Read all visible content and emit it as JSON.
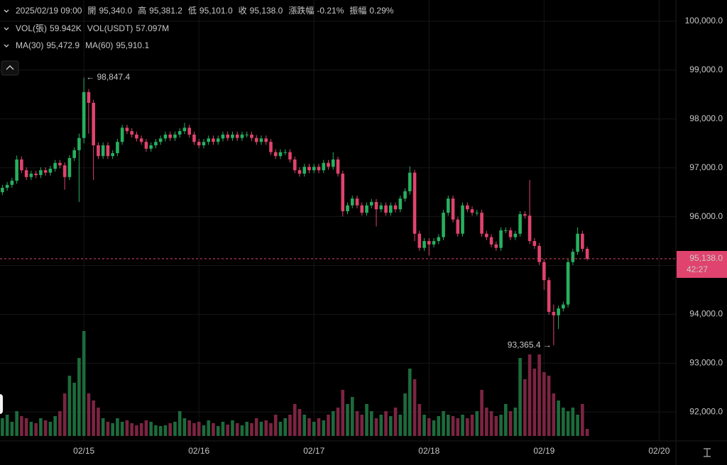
{
  "chart_data": {
    "type": "candlestick",
    "legend_rows": [
      [
        {
          "label": "2025/02/19 09:00"
        },
        {
          "label": "開",
          "value": "95,340.0",
          "color": "#e0436d"
        },
        {
          "label": "高",
          "value": "95,381.2",
          "color": "#e0436d"
        },
        {
          "label": "低",
          "value": "95,101.0",
          "color": "#e0436d"
        },
        {
          "label": "收",
          "value": "95,138.0",
          "color": "#e0436d"
        },
        {
          "label": "漲跌幅",
          "value": "-0.21%",
          "color": "#e0436d"
        },
        {
          "label": "振幅",
          "value": "0.29%",
          "color": "#e0436d"
        }
      ],
      [
        {
          "label": "VOL(張)",
          "value": "59.942K",
          "color": "#f0a040"
        },
        {
          "label": "VOL(USDT)",
          "value": "57.097M",
          "color": "#f0a040"
        }
      ],
      [
        {
          "label": "MA(30)",
          "value": "95,472.9",
          "color": "#f0a040"
        },
        {
          "label": "MA(60)",
          "value": "95,910.1",
          "color": "#e0436d"
        }
      ]
    ],
    "up_color": "#27b05e",
    "down_color": "#e0436d",
    "up_volume_color": "#1d6b3c",
    "down_volume_color": "#7c2442",
    "open": [
      96500,
      96590,
      96650,
      96735,
      97170,
      96950,
      96810,
      96880,
      96850,
      96950,
      96900,
      96980,
      97100,
      97050,
      96810,
      97200,
      97360,
      97610,
      98550,
      98330,
      97460,
      97240,
      97460,
      97240,
      97300,
      97530,
      97820,
      97750,
      97680,
      97600,
      97530,
      97390,
      97460,
      97530,
      97600,
      97680,
      97610,
      97680,
      97750,
      97820,
      97680,
      97530,
      97460,
      97530,
      97600,
      97530,
      97600,
      97680,
      97610,
      97680,
      97610,
      97680,
      97680,
      97610,
      97530,
      97600,
      97530,
      97320,
      97240,
      97320,
      97320,
      97170,
      96950,
      96880,
      97020,
      96950,
      97020,
      96950,
      97100,
      97020,
      97170,
      96880,
      96110,
      96230,
      96370,
      96230,
      96080,
      96230,
      96300,
      96150,
      96230,
      96080,
      96230,
      96150,
      96370,
      96520,
      96900,
      95650,
      95360,
      95500,
      95430,
      95500,
      95580,
      96080,
      96370,
      95940,
      95650,
      96230,
      96150,
      96080,
      96080,
      95650,
      95580,
      95430,
      95360,
      95720,
      95720,
      95580,
      95650,
      96050,
      96020,
      95500,
      95400,
      95070,
      94700,
      94050,
      93980,
      94120,
      94200,
      95070,
      95280,
      95650,
      95340
    ],
    "high": [
      96650,
      96710,
      96795,
      97250,
      97230,
      97010,
      96940,
      96940,
      97010,
      97010,
      97040,
      97160,
      97160,
      97110,
      97260,
      97420,
      97700,
      98847.4,
      98610,
      98390,
      97520,
      97520,
      97520,
      97360,
      97590,
      97880,
      97880,
      97810,
      97740,
      97660,
      97590,
      97520,
      97590,
      97660,
      97740,
      97740,
      97740,
      97810,
      97920,
      97880,
      97740,
      97590,
      97590,
      97660,
      97660,
      97660,
      97740,
      97740,
      97740,
      97740,
      97740,
      97740,
      97740,
      97670,
      97660,
      97660,
      97590,
      97380,
      97380,
      97380,
      97380,
      97230,
      97010,
      97080,
      97080,
      97080,
      97080,
      97160,
      97160,
      97320,
      97230,
      96940,
      96290,
      96430,
      96430,
      96290,
      96290,
      96360,
      96360,
      96290,
      96290,
      96290,
      96290,
      96430,
      96580,
      97030,
      96960,
      95710,
      95560,
      95560,
      95560,
      95640,
      96140,
      96430,
      96430,
      96000,
      96290,
      96290,
      96210,
      96140,
      96140,
      95710,
      95640,
      95490,
      95780,
      95780,
      95780,
      95710,
      96110,
      96110,
      96750,
      95560,
      95460,
      95130,
      94760,
      94200,
      94180,
      94260,
      95130,
      95340,
      95780,
      95710,
      95381.2
    ],
    "low": [
      96440,
      96530,
      96590,
      96675,
      96890,
      96750,
      96750,
      96790,
      96790,
      96840,
      96840,
      96920,
      96990,
      96550,
      96750,
      97140,
      96300,
      97500,
      97700,
      96750,
      97180,
      97180,
      97180,
      97180,
      97240,
      97470,
      97690,
      97620,
      97540,
      97470,
      97330,
      97330,
      97400,
      97470,
      97540,
      97550,
      97550,
      97620,
      97690,
      97620,
      97470,
      97400,
      97400,
      97470,
      97470,
      97470,
      97540,
      97550,
      97550,
      97550,
      97550,
      97620,
      97550,
      97470,
      97470,
      97470,
      97260,
      97180,
      97180,
      97260,
      97110,
      96890,
      96820,
      96820,
      96890,
      96890,
      96890,
      96890,
      96960,
      96960,
      96820,
      96000,
      96050,
      96170,
      96170,
      96020,
      96020,
      96170,
      95800,
      96090,
      96020,
      96020,
      96090,
      96090,
      96310,
      96450,
      95500,
      95300,
      95300,
      95200,
      95370,
      95440,
      95520,
      96020,
      95880,
      95590,
      95590,
      96090,
      96020,
      96020,
      95590,
      95520,
      95370,
      95300,
      95300,
      95660,
      95520,
      95520,
      95590,
      95960,
      95440,
      95340,
      95010,
      94500,
      93990,
      93365.4,
      93700,
      94060,
      94140,
      95010,
      95220,
      95280,
      95101
    ],
    "close": [
      96590,
      96650,
      96735,
      97170,
      96950,
      96810,
      96880,
      96850,
      96950,
      96900,
      96980,
      97100,
      97050,
      96810,
      97200,
      97360,
      97610,
      98550,
      98330,
      97460,
      97240,
      97460,
      97240,
      97300,
      97530,
      97820,
      97750,
      97680,
      97600,
      97530,
      97390,
      97460,
      97530,
      97600,
      97680,
      97610,
      97680,
      97750,
      97820,
      97680,
      97530,
      97460,
      97530,
      97600,
      97530,
      97600,
      97680,
      97610,
      97680,
      97610,
      97680,
      97680,
      97610,
      97530,
      97600,
      97530,
      97320,
      97240,
      97320,
      97320,
      97170,
      96950,
      96880,
      97020,
      96950,
      97020,
      96950,
      97100,
      97020,
      97170,
      96880,
      96110,
      96230,
      96370,
      96230,
      96080,
      96230,
      96300,
      96150,
      96230,
      96080,
      96230,
      96150,
      96370,
      96520,
      96900,
      95650,
      95360,
      95500,
      95430,
      95500,
      95580,
      96080,
      96370,
      95940,
      95650,
      96230,
      96150,
      96080,
      96080,
      95650,
      95580,
      95430,
      95360,
      95720,
      95720,
      95580,
      95650,
      96050,
      96020,
      95500,
      95400,
      95070,
      94700,
      94050,
      93980,
      94120,
      94200,
      95070,
      95280,
      95650,
      95340,
      95138
    ],
    "volume": [
      150000,
      180000,
      120000,
      210000,
      168000,
      150000,
      120000,
      108000,
      150000,
      132000,
      120000,
      168000,
      210000,
      360000,
      510000,
      450000,
      660000,
      888000,
      360000,
      300000,
      240000,
      150000,
      120000,
      108000,
      150000,
      120000,
      132000,
      108000,
      90000,
      108000,
      132000,
      120000,
      90000,
      84000,
      90000,
      108000,
      120000,
      210000,
      150000,
      132000,
      108000,
      120000,
      90000,
      132000,
      108000,
      84000,
      120000,
      96000,
      132000,
      108000,
      90000,
      120000,
      108000,
      150000,
      120000,
      132000,
      108000,
      180000,
      120000,
      150000,
      180000,
      270000,
      228000,
      180000,
      150000,
      120000,
      150000,
      132000,
      180000,
      210000,
      240000,
      390000,
      270000,
      330000,
      210000,
      180000,
      270000,
      210000,
      150000,
      180000,
      210000,
      168000,
      240000,
      180000,
      360000,
      570000,
      480000,
      270000,
      180000,
      150000,
      132000,
      168000,
      210000,
      180000,
      168000,
      150000,
      180000,
      150000,
      180000,
      210000,
      390000,
      240000,
      210000,
      168000,
      180000,
      270000,
      210000,
      240000,
      660000,
      480000,
      690000,
      570000,
      690000,
      540000,
      510000,
      360000,
      300000,
      240000,
      210000,
      240000,
      180000,
      270000,
      59942
    ],
    "ylim": [
      91510,
      100435
    ],
    "yticks": [
      {
        "value": 100000,
        "label": "100,000.0"
      },
      {
        "value": 99000,
        "label": "99,000.0"
      },
      {
        "value": 98000,
        "label": "98,000.0"
      },
      {
        "value": 97000,
        "label": "97,000.0"
      },
      {
        "value": 96000,
        "label": "96,000.0"
      },
      {
        "value": 95000,
        "label": "95,000.0"
      },
      {
        "value": 94000,
        "label": "94,000.0"
      },
      {
        "value": 93000,
        "label": "93,000.0"
      },
      {
        "value": 92000,
        "label": "92,000.0"
      }
    ],
    "xlim": [
      -0.5,
      140.2
    ],
    "xticks": [
      {
        "value": 17,
        "label": "02/15"
      },
      {
        "value": 41,
        "label": "02/16"
      },
      {
        "value": 65,
        "label": "02/17"
      },
      {
        "value": 89,
        "label": "02/18"
      },
      {
        "value": 113,
        "label": "02/19"
      },
      {
        "value": 137,
        "label": "02/20"
      }
    ],
    "high_annotation": "← 98,847.4",
    "low_annotation": "93,365.4 →",
    "last_price_label": "95,138.0",
    "countdown": "42:27",
    "grid": true
  }
}
